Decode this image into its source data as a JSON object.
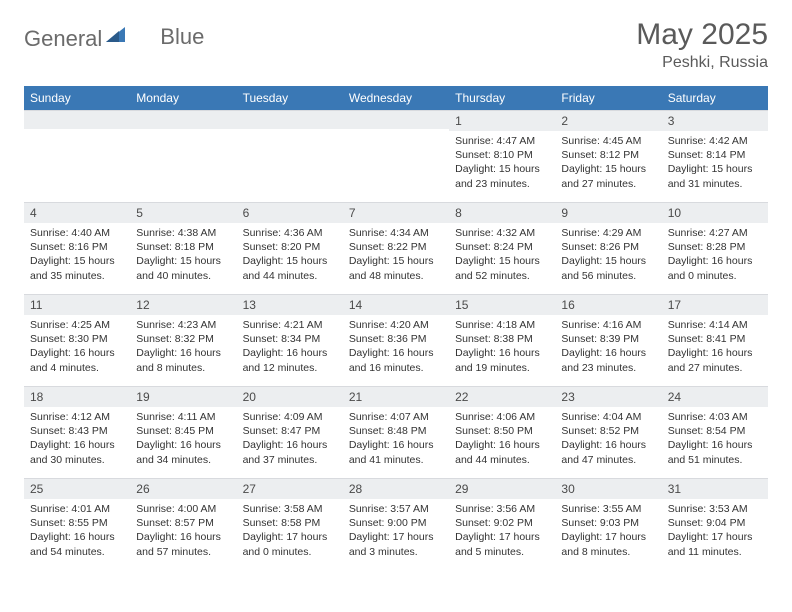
{
  "header": {
    "logo_part1": "General",
    "logo_part2": "Blue",
    "title": "May 2025",
    "subtitle": "Peshki, Russia"
  },
  "colors": {
    "header_bg": "#3a78b5",
    "header_text": "#ffffff",
    "daynum_bg": "#eceef0",
    "text": "#333333",
    "logo_gray": "#6b6b6b",
    "logo_blue": "#3a78b5"
  },
  "weekdays": [
    "Sunday",
    "Monday",
    "Tuesday",
    "Wednesday",
    "Thursday",
    "Friday",
    "Saturday"
  ],
  "weeks": [
    [
      {
        "day": "",
        "sunrise": "",
        "sunset": "",
        "daylight": ""
      },
      {
        "day": "",
        "sunrise": "",
        "sunset": "",
        "daylight": ""
      },
      {
        "day": "",
        "sunrise": "",
        "sunset": "",
        "daylight": ""
      },
      {
        "day": "",
        "sunrise": "",
        "sunset": "",
        "daylight": ""
      },
      {
        "day": "1",
        "sunrise": "Sunrise: 4:47 AM",
        "sunset": "Sunset: 8:10 PM",
        "daylight": "Daylight: 15 hours and 23 minutes."
      },
      {
        "day": "2",
        "sunrise": "Sunrise: 4:45 AM",
        "sunset": "Sunset: 8:12 PM",
        "daylight": "Daylight: 15 hours and 27 minutes."
      },
      {
        "day": "3",
        "sunrise": "Sunrise: 4:42 AM",
        "sunset": "Sunset: 8:14 PM",
        "daylight": "Daylight: 15 hours and 31 minutes."
      }
    ],
    [
      {
        "day": "4",
        "sunrise": "Sunrise: 4:40 AM",
        "sunset": "Sunset: 8:16 PM",
        "daylight": "Daylight: 15 hours and 35 minutes."
      },
      {
        "day": "5",
        "sunrise": "Sunrise: 4:38 AM",
        "sunset": "Sunset: 8:18 PM",
        "daylight": "Daylight: 15 hours and 40 minutes."
      },
      {
        "day": "6",
        "sunrise": "Sunrise: 4:36 AM",
        "sunset": "Sunset: 8:20 PM",
        "daylight": "Daylight: 15 hours and 44 minutes."
      },
      {
        "day": "7",
        "sunrise": "Sunrise: 4:34 AM",
        "sunset": "Sunset: 8:22 PM",
        "daylight": "Daylight: 15 hours and 48 minutes."
      },
      {
        "day": "8",
        "sunrise": "Sunrise: 4:32 AM",
        "sunset": "Sunset: 8:24 PM",
        "daylight": "Daylight: 15 hours and 52 minutes."
      },
      {
        "day": "9",
        "sunrise": "Sunrise: 4:29 AM",
        "sunset": "Sunset: 8:26 PM",
        "daylight": "Daylight: 15 hours and 56 minutes."
      },
      {
        "day": "10",
        "sunrise": "Sunrise: 4:27 AM",
        "sunset": "Sunset: 8:28 PM",
        "daylight": "Daylight: 16 hours and 0 minutes."
      }
    ],
    [
      {
        "day": "11",
        "sunrise": "Sunrise: 4:25 AM",
        "sunset": "Sunset: 8:30 PM",
        "daylight": "Daylight: 16 hours and 4 minutes."
      },
      {
        "day": "12",
        "sunrise": "Sunrise: 4:23 AM",
        "sunset": "Sunset: 8:32 PM",
        "daylight": "Daylight: 16 hours and 8 minutes."
      },
      {
        "day": "13",
        "sunrise": "Sunrise: 4:21 AM",
        "sunset": "Sunset: 8:34 PM",
        "daylight": "Daylight: 16 hours and 12 minutes."
      },
      {
        "day": "14",
        "sunrise": "Sunrise: 4:20 AM",
        "sunset": "Sunset: 8:36 PM",
        "daylight": "Daylight: 16 hours and 16 minutes."
      },
      {
        "day": "15",
        "sunrise": "Sunrise: 4:18 AM",
        "sunset": "Sunset: 8:38 PM",
        "daylight": "Daylight: 16 hours and 19 minutes."
      },
      {
        "day": "16",
        "sunrise": "Sunrise: 4:16 AM",
        "sunset": "Sunset: 8:39 PM",
        "daylight": "Daylight: 16 hours and 23 minutes."
      },
      {
        "day": "17",
        "sunrise": "Sunrise: 4:14 AM",
        "sunset": "Sunset: 8:41 PM",
        "daylight": "Daylight: 16 hours and 27 minutes."
      }
    ],
    [
      {
        "day": "18",
        "sunrise": "Sunrise: 4:12 AM",
        "sunset": "Sunset: 8:43 PM",
        "daylight": "Daylight: 16 hours and 30 minutes."
      },
      {
        "day": "19",
        "sunrise": "Sunrise: 4:11 AM",
        "sunset": "Sunset: 8:45 PM",
        "daylight": "Daylight: 16 hours and 34 minutes."
      },
      {
        "day": "20",
        "sunrise": "Sunrise: 4:09 AM",
        "sunset": "Sunset: 8:47 PM",
        "daylight": "Daylight: 16 hours and 37 minutes."
      },
      {
        "day": "21",
        "sunrise": "Sunrise: 4:07 AM",
        "sunset": "Sunset: 8:48 PM",
        "daylight": "Daylight: 16 hours and 41 minutes."
      },
      {
        "day": "22",
        "sunrise": "Sunrise: 4:06 AM",
        "sunset": "Sunset: 8:50 PM",
        "daylight": "Daylight: 16 hours and 44 minutes."
      },
      {
        "day": "23",
        "sunrise": "Sunrise: 4:04 AM",
        "sunset": "Sunset: 8:52 PM",
        "daylight": "Daylight: 16 hours and 47 minutes."
      },
      {
        "day": "24",
        "sunrise": "Sunrise: 4:03 AM",
        "sunset": "Sunset: 8:54 PM",
        "daylight": "Daylight: 16 hours and 51 minutes."
      }
    ],
    [
      {
        "day": "25",
        "sunrise": "Sunrise: 4:01 AM",
        "sunset": "Sunset: 8:55 PM",
        "daylight": "Daylight: 16 hours and 54 minutes."
      },
      {
        "day": "26",
        "sunrise": "Sunrise: 4:00 AM",
        "sunset": "Sunset: 8:57 PM",
        "daylight": "Daylight: 16 hours and 57 minutes."
      },
      {
        "day": "27",
        "sunrise": "Sunrise: 3:58 AM",
        "sunset": "Sunset: 8:58 PM",
        "daylight": "Daylight: 17 hours and 0 minutes."
      },
      {
        "day": "28",
        "sunrise": "Sunrise: 3:57 AM",
        "sunset": "Sunset: 9:00 PM",
        "daylight": "Daylight: 17 hours and 3 minutes."
      },
      {
        "day": "29",
        "sunrise": "Sunrise: 3:56 AM",
        "sunset": "Sunset: 9:02 PM",
        "daylight": "Daylight: 17 hours and 5 minutes."
      },
      {
        "day": "30",
        "sunrise": "Sunrise: 3:55 AM",
        "sunset": "Sunset: 9:03 PM",
        "daylight": "Daylight: 17 hours and 8 minutes."
      },
      {
        "day": "31",
        "sunrise": "Sunrise: 3:53 AM",
        "sunset": "Sunset: 9:04 PM",
        "daylight": "Daylight: 17 hours and 11 minutes."
      }
    ]
  ]
}
